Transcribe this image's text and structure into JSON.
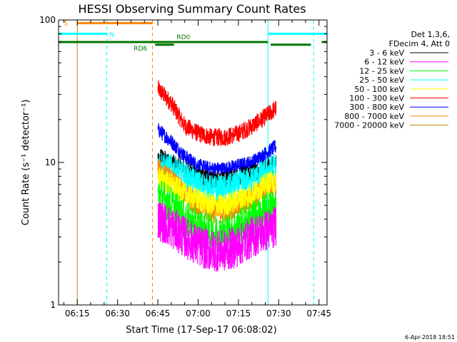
{
  "chart_data": {
    "type": "line",
    "title": "HESSI Observing Summary Count Rates",
    "xlabel": "Start Time (17-Sep-17 06:08:02)",
    "ylabel": "Count Rate (s⁻¹ detector⁻¹)",
    "yscale": "log",
    "ylim": [
      1,
      100
    ],
    "xlim": [
      "06:08:02",
      "07:48:00"
    ],
    "x_ticks": [
      "06:15",
      "06:30",
      "06:45",
      "07:00",
      "07:15",
      "07:30",
      "07:45"
    ],
    "y_ticks": [
      "1",
      "10",
      "100"
    ],
    "timestamp": "6-Apr-2018 18:51",
    "legend": {
      "placement": "right",
      "header": [
        "Det 1,3,6,",
        "FDecim 4, Att 0"
      ],
      "entries": [
        {
          "label": "3 - 6 keV",
          "color": "#000000"
        },
        {
          "label": "6 - 12 keV",
          "color": "#ff00ff"
        },
        {
          "label": "12 - 25 keV",
          "color": "#00ff00"
        },
        {
          "label": "25 - 50 keV",
          "color": "#00ffff"
        },
        {
          "label": "50 - 100 keV",
          "color": "#ffff00"
        },
        {
          "label": "100 - 300 keV",
          "color": "#ff0000"
        },
        {
          "label": "300 - 800 keV",
          "color": "#0000ff"
        },
        {
          "label": "800 - 7000 keV",
          "color": "#ff8800"
        },
        {
          "label": "7000 - 20000 keV",
          "color": "#b8860b"
        }
      ]
    },
    "flag_bars": [
      {
        "label": "S",
        "color": "#ff8800",
        "y": 95,
        "start": "06:15",
        "end": "06:43"
      },
      {
        "label": "N",
        "color": "#00ffff",
        "y": 80,
        "start": "06:08:02",
        "end": "06:26",
        "label_at": "06:27"
      },
      {
        "label": "N",
        "color": "#00ffff",
        "y": 80,
        "start": "07:26",
        "end": "07:48"
      },
      {
        "label": "RD0",
        "color": "#007700",
        "y": 70,
        "start": "06:08:02",
        "end": "07:26"
      },
      {
        "label": "RD6",
        "color": "#007700",
        "y": 67,
        "start": "06:44",
        "end": "06:51"
      },
      {
        "label": "",
        "color": "#007700",
        "y": 67,
        "start": "07:27",
        "end": "07:42"
      },
      {
        "label": "",
        "color": "#007700",
        "y": 70,
        "start": "07:46",
        "end": "07:48"
      }
    ],
    "flag_labels": [
      {
        "text": "S",
        "color": "#ff8800"
      },
      {
        "text": "N",
        "color": "#00ffff"
      },
      {
        "text": "RD0",
        "color": "#007700"
      },
      {
        "text": "RD6",
        "color": "#007700"
      }
    ],
    "vlines": [
      {
        "time": "06:15",
        "color": "#b8860b",
        "style": "solid"
      },
      {
        "time": "06:26",
        "color": "#00ffff",
        "style": "dashed"
      },
      {
        "time": "06:43",
        "color": "#ff8800",
        "style": "dashed"
      },
      {
        "time": "07:26",
        "color": "#00ffff",
        "style": "solid"
      },
      {
        "time": "07:43",
        "color": "#00ffff",
        "style": "dashed"
      }
    ],
    "data_interval": [
      "06:45",
      "07:29"
    ],
    "series": [
      {
        "name": "100 - 300 keV",
        "color": "#ff0000",
        "times": [
          "06:45",
          "06:50",
          "06:55",
          "07:00",
          "07:05",
          "07:10",
          "07:15",
          "07:20",
          "07:25",
          "07:29"
        ],
        "values": [
          33,
          26,
          18,
          16,
          15,
          15,
          16,
          18,
          21,
          24
        ],
        "spread": 1.15
      },
      {
        "name": "300 - 800 keV",
        "color": "#0000ff",
        "times": [
          "06:45",
          "06:50",
          "06:55",
          "07:00",
          "07:05",
          "07:10",
          "07:15",
          "07:20",
          "07:25",
          "07:29"
        ],
        "values": [
          17,
          14,
          11,
          9.5,
          9,
          9,
          9.5,
          10,
          11.5,
          13
        ],
        "spread": 1.12
      },
      {
        "name": "3 - 6 keV",
        "color": "#000000",
        "times": [
          "06:45",
          "06:50",
          "06:55",
          "07:00",
          "07:05",
          "07:10",
          "07:15",
          "07:20",
          "07:25",
          "07:29"
        ],
        "values": [
          11,
          10,
          9,
          8,
          7.5,
          7.5,
          8,
          8.5,
          9,
          10
        ],
        "spread": 1.15
      },
      {
        "name": "25 - 50 keV",
        "color": "#00ffff",
        "times": [
          "06:45",
          "06:50",
          "06:55",
          "07:00",
          "07:05",
          "07:10",
          "07:15",
          "07:20",
          "07:25",
          "07:29"
        ],
        "values": [
          10,
          9,
          8,
          7,
          6.5,
          6.5,
          7,
          7.5,
          8.5,
          9.5
        ],
        "spread": 1.25
      },
      {
        "name": "800 - 7000 keV",
        "color": "#ff8800",
        "times": [
          "06:45",
          "06:50",
          "06:55",
          "07:00",
          "07:05",
          "07:10",
          "07:15",
          "07:20",
          "07:25",
          "07:29"
        ],
        "values": [
          9,
          7.5,
          6,
          5,
          4.5,
          4.5,
          5,
          5.5,
          6.5,
          7
        ],
        "spread": 1.2
      },
      {
        "name": "50 - 100 keV",
        "color": "#ffff00",
        "times": [
          "06:45",
          "06:50",
          "06:55",
          "07:00",
          "07:05",
          "07:10",
          "07:15",
          "07:20",
          "07:25",
          "07:29"
        ],
        "values": [
          8,
          7,
          6,
          5.5,
          5,
          5,
          5.5,
          6,
          7,
          7.5
        ],
        "spread": 1.2
      },
      {
        "name": "12 - 25 keV",
        "color": "#00ff00",
        "times": [
          "06:45",
          "06:50",
          "06:55",
          "07:00",
          "07:05",
          "07:10",
          "07:15",
          "07:20",
          "07:25",
          "07:29"
        ],
        "values": [
          6,
          5,
          4,
          3.5,
          3.2,
          3.2,
          3.5,
          4,
          4.5,
          5
        ],
        "spread": 1.35
      },
      {
        "name": "6 - 12 keV",
        "color": "#ff00ff",
        "times": [
          "06:45",
          "06:50",
          "06:55",
          "07:00",
          "07:05",
          "07:10",
          "07:15",
          "07:20",
          "07:25",
          "07:29"
        ],
        "values": [
          4,
          3.5,
          3,
          2.6,
          2.4,
          2.4,
          2.6,
          3,
          3.3,
          3.6
        ],
        "spread": 1.4
      },
      {
        "name": "7000 - 20000 keV",
        "color": "#b8860b",
        "times": [],
        "values": [],
        "spread": 1
      }
    ]
  }
}
